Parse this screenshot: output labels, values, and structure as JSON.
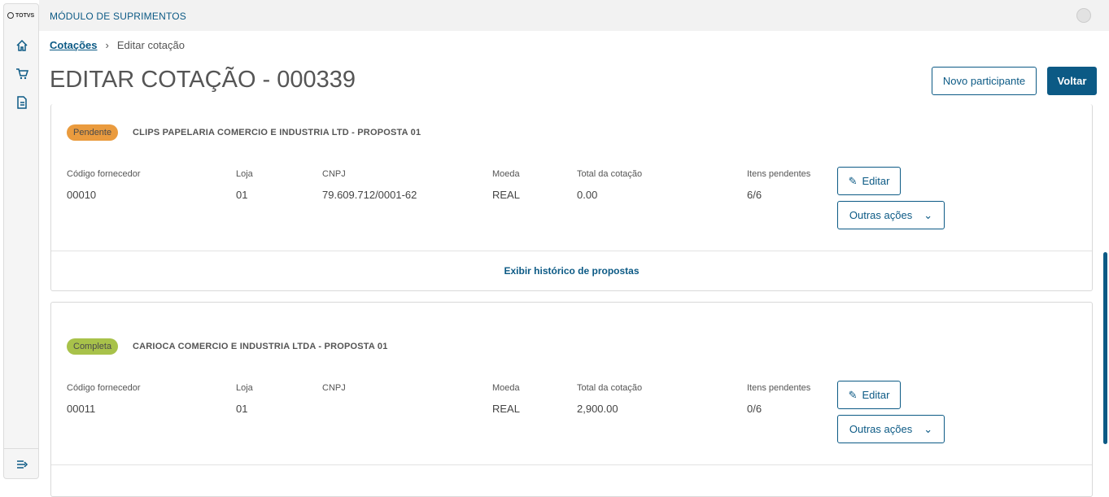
{
  "app": {
    "logo": "TOTVS",
    "module_title": "MÓDULO DE SUPRIMENTOS"
  },
  "sidebar": {
    "items": [
      {
        "icon": "home-icon"
      },
      {
        "icon": "cart-icon"
      },
      {
        "icon": "document-icon"
      }
    ],
    "collapse_icon": "expand-menu-icon"
  },
  "breadcrumb": {
    "items": [
      "Cotações",
      "Editar cotação"
    ]
  },
  "page": {
    "title": "EDITAR COTAÇÃO - 000339",
    "new_participant": "Novo participante",
    "back": "Voltar"
  },
  "colors": {
    "primary": "#0c5a85",
    "pending": "#ea9b3e",
    "complete": "#a8c24a"
  },
  "labels": {
    "code": "Código fornecedor",
    "store": "Loja",
    "cnpj": "CNPJ",
    "currency": "Moeda",
    "total": "Total da cotação",
    "pending_items": "Itens pendentes",
    "edit": "Editar",
    "other_actions": "Outras ações",
    "history": "Exibir histórico de propostas"
  },
  "proposals": [
    {
      "status": "Pendente",
      "title": "CLIPS PAPELARIA COMERCIO E INDUSTRIA LTD - PROPOSTA 01",
      "code": "00010",
      "store": "01",
      "cnpj": "79.609.712/0001-62",
      "currency": "REAL",
      "total": "0.00",
      "pending_items": "6/6"
    },
    {
      "status": "Completa",
      "title": "CARIOCA COMERCIO E INDUSTRIA LTDA - PROPOSTA 01",
      "code": "00011",
      "store": "01",
      "cnpj": "",
      "currency": "REAL",
      "total": "2,900.00",
      "pending_items": "0/6"
    }
  ]
}
